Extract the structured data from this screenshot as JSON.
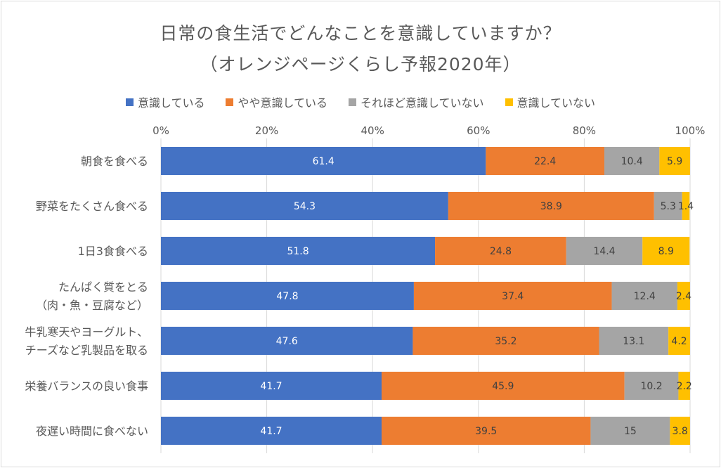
{
  "chart_data": {
    "type": "bar",
    "orientation": "horizontal",
    "stacked": "percent",
    "title": "日常の食生活でどんなことを意識していますか？",
    "subtitle": "（オレンジページくらし予報2020年）",
    "categories": [
      [
        "朝食を食べる"
      ],
      [
        "野菜をたくさん食べる"
      ],
      [
        "1日3食食べる"
      ],
      [
        "たんぱく質をとる",
        "（肉・魚・豆腐など）"
      ],
      [
        "牛乳寒天やヨーグルト、",
        "チーズなど乳製品を取る"
      ],
      [
        "栄養バランスの良い食事"
      ],
      [
        "夜遅い時間に食べない"
      ]
    ],
    "series": [
      {
        "name": "意識している",
        "color": "#4472c4",
        "label_color": "#ffffff",
        "values": [
          61.4,
          54.3,
          51.8,
          47.8,
          47.6,
          41.7,
          41.7
        ]
      },
      {
        "name": "やや意識している",
        "color": "#ed7d31",
        "label_color": "#404040",
        "values": [
          22.4,
          38.9,
          24.8,
          37.4,
          35.2,
          45.9,
          39.5
        ]
      },
      {
        "name": "それほど意識していない",
        "color": "#a5a5a5",
        "label_color": "#404040",
        "values": [
          10.4,
          5.3,
          14.4,
          12.4,
          13.1,
          10.2,
          15
        ]
      },
      {
        "name": "意識していない",
        "color": "#ffc000",
        "label_color": "#404040",
        "values": [
          5.9,
          1.4,
          8.9,
          2.4,
          4.2,
          2.2,
          3.8
        ]
      }
    ],
    "xticks": [
      "0%",
      "20%",
      "40%",
      "60%",
      "80%",
      "100%"
    ],
    "xlim": [
      0,
      100
    ],
    "x_axis_position": "top",
    "legend_position": "top",
    "grid": true
  }
}
